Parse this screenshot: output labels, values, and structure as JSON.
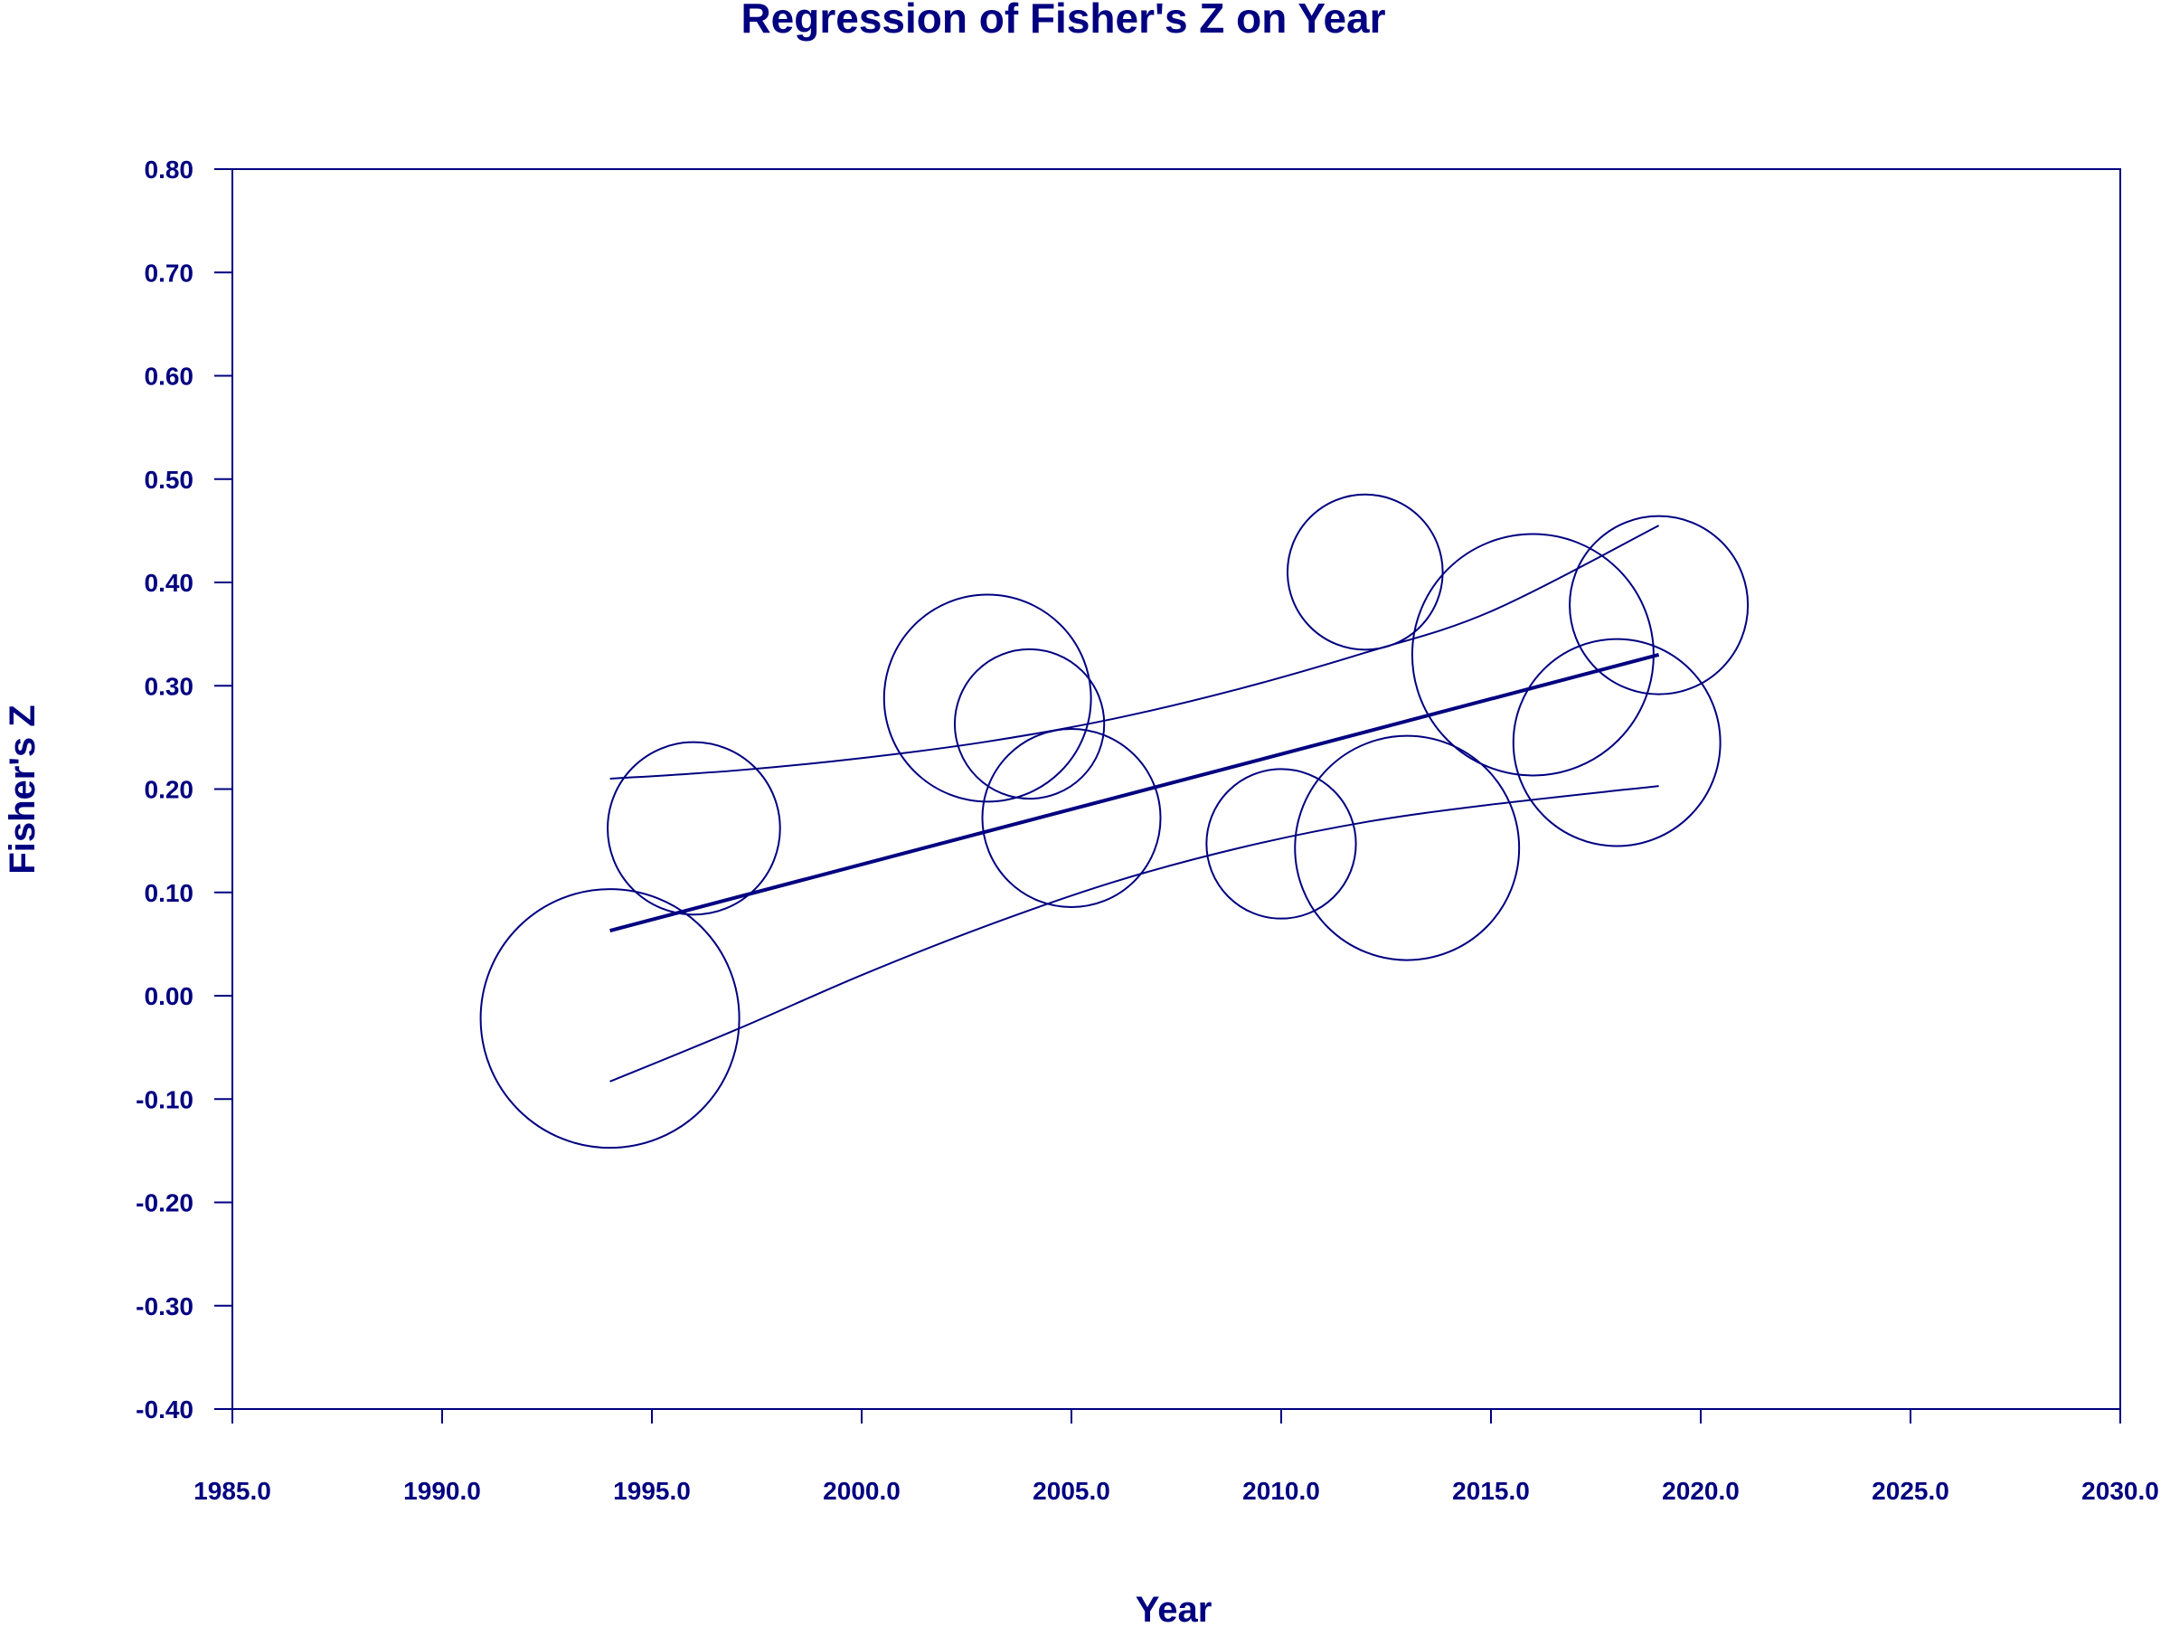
{
  "chart_data": {
    "type": "scatter",
    "title": "Regression of Fisher's Z on Year",
    "xlabel": "Year",
    "ylabel": "Fisher's Z",
    "xlim": [
      1985,
      2030
    ],
    "ylim": [
      -0.4,
      0.8
    ],
    "x_ticks": [
      "1985.0",
      "1990.0",
      "1995.0",
      "2000.0",
      "2005.0",
      "2010.0",
      "2015.0",
      "2020.0",
      "2025.0",
      "2030.0"
    ],
    "x_tick_values": [
      1985,
      1990,
      1995,
      2000,
      2005,
      2010,
      2015,
      2020,
      2025,
      2030
    ],
    "y_ticks": [
      "0.80",
      "0.70",
      "0.60",
      "0.50",
      "0.40",
      "0.30",
      "0.20",
      "0.10",
      "0.00",
      "-0.10",
      "-0.20",
      "-0.30",
      "-0.40"
    ],
    "y_tick_values": [
      0.8,
      0.7,
      0.6,
      0.5,
      0.4,
      0.3,
      0.2,
      0.1,
      0.0,
      -0.1,
      -0.2,
      -0.3,
      -0.4
    ],
    "grid": false,
    "color": "#000080",
    "points": [
      {
        "x": 1994,
        "y": -0.022,
        "weight": 4.5
      },
      {
        "x": 1996,
        "y": 0.162,
        "weight": 3.0
      },
      {
        "x": 2003,
        "y": 0.288,
        "weight": 3.6
      },
      {
        "x": 2004,
        "y": 0.263,
        "weight": 2.6
      },
      {
        "x": 2005,
        "y": 0.172,
        "weight": 3.1
      },
      {
        "x": 2010,
        "y": 0.147,
        "weight": 2.6
      },
      {
        "x": 2012,
        "y": 0.41,
        "weight": 2.7
      },
      {
        "x": 2013,
        "y": 0.143,
        "weight": 3.9
      },
      {
        "x": 2016,
        "y": 0.33,
        "weight": 4.2
      },
      {
        "x": 2018,
        "y": 0.245,
        "weight": 3.6
      },
      {
        "x": 2019,
        "y": 0.378,
        "weight": 3.1
      }
    ],
    "regression_line": {
      "x": [
        1994,
        2019
      ],
      "y": [
        0.063,
        0.33
      ]
    },
    "ci_upper": {
      "x": [
        1994,
        1997,
        2000,
        2003,
        2006,
        2009,
        2012,
        2015,
        2019
      ],
      "y": [
        0.21,
        0.218,
        0.23,
        0.246,
        0.268,
        0.297,
        0.332,
        0.372,
        0.455
      ]
    },
    "ci_lower": {
      "x": [
        1994,
        1997,
        2000,
        2003,
        2006,
        2009,
        2012,
        2015,
        2019
      ],
      "y": [
        -0.083,
        -0.033,
        0.02,
        0.068,
        0.11,
        0.143,
        0.168,
        0.185,
        0.203
      ]
    }
  }
}
